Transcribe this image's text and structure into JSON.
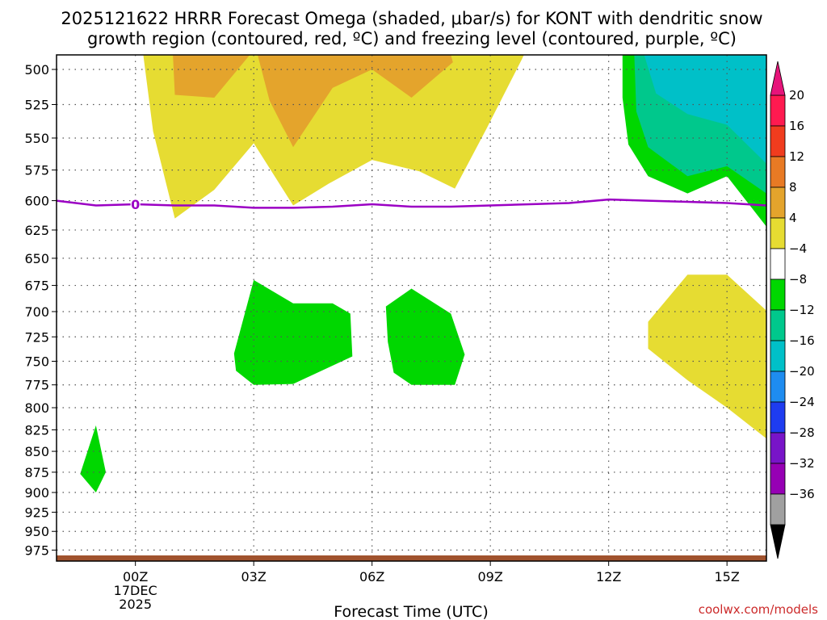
{
  "chart_data": {
    "type": "heatmap",
    "title_lines": [
      "2025121622 HRRR Forecast Omega (shaded, μbar/s) for KONT with dendritic snow",
      "growth region (contoured, red, ºC) and freezing level (contoured, purple, ºC)"
    ],
    "xlabel": "Forecast Time (UTC)",
    "xlim": [
      -2,
      16
    ],
    "ylim": [
      490,
      990
    ],
    "y_scale": "pressure",
    "grid": true,
    "x_ticks": [
      {
        "value": 0,
        "lines": [
          "00Z",
          "17DEC",
          "2025"
        ]
      },
      {
        "value": 3,
        "lines": [
          "03Z"
        ]
      },
      {
        "value": 6,
        "lines": [
          "06Z"
        ]
      },
      {
        "value": 9,
        "lines": [
          "09Z"
        ]
      },
      {
        "value": 12,
        "lines": [
          "12Z"
        ]
      },
      {
        "value": 15,
        "lines": [
          "15Z"
        ]
      }
    ],
    "y_ticks": [
      500,
      525,
      550,
      575,
      600,
      625,
      650,
      675,
      700,
      725,
      750,
      775,
      800,
      825,
      850,
      875,
      900,
      925,
      950,
      975
    ],
    "colorbar": {
      "placement": "right",
      "levels": [
        20,
        16,
        12,
        8,
        4,
        -4,
        -8,
        -12,
        -16,
        -20,
        -24,
        -28,
        -32,
        -36
      ],
      "colors": [
        "#ff1a50",
        "#f03c1e",
        "#e87a24",
        "#e4a42c",
        "#e6dc32",
        "#ffffff",
        "#00d700",
        "#00c88c",
        "#00c0c8",
        "#1e8cf0",
        "#1e3cf0",
        "#7814c8",
        "#9600b4",
        "#a0a0a0"
      ],
      "top_triangle_color": "#e6147a",
      "bottom_triangle_color": "#000000"
    },
    "freezing_level": {
      "color": "#9b00c4",
      "label": "0",
      "label_x": 0,
      "points": [
        [
          -2,
          600
        ],
        [
          -1,
          604
        ],
        [
          0,
          603
        ],
        [
          1,
          604
        ],
        [
          2,
          604
        ],
        [
          3,
          606
        ],
        [
          4,
          606
        ],
        [
          5,
          605
        ],
        [
          6,
          603
        ],
        [
          7,
          605
        ],
        [
          8,
          605
        ],
        [
          9,
          604
        ],
        [
          10,
          603
        ],
        [
          11,
          602
        ],
        [
          12,
          599
        ],
        [
          13,
          600
        ],
        [
          14,
          601
        ],
        [
          15,
          602
        ],
        [
          16,
          604
        ]
      ]
    },
    "surface_color": "#a0522d",
    "shaded_regions": [
      {
        "value": 4,
        "color": "#e6dc32",
        "points": [
          [
            0.2,
            490
          ],
          [
            9.85,
            490
          ],
          [
            9.8,
            493
          ],
          [
            8.9,
            543
          ],
          [
            8.1,
            590
          ],
          [
            7.2,
            576
          ],
          [
            6.0,
            567
          ],
          [
            4.9,
            586
          ],
          [
            4.0,
            604
          ],
          [
            3.0,
            554
          ],
          [
            2.0,
            591
          ],
          [
            1.0,
            615
          ],
          [
            0.45,
            545
          ]
        ]
      },
      {
        "value": 8,
        "color": "#e4a42c",
        "points": [
          [
            0.95,
            490
          ],
          [
            2.9,
            490
          ],
          [
            2.0,
            520
          ],
          [
            1.0,
            518
          ]
        ]
      },
      {
        "value": 8,
        "color": "#e4a42c",
        "points": [
          [
            3.1,
            490
          ],
          [
            8.0,
            490
          ],
          [
            8.05,
            495
          ],
          [
            7.0,
            520
          ],
          [
            6.0,
            500
          ],
          [
            5.0,
            513
          ],
          [
            4.0,
            557
          ],
          [
            3.4,
            522
          ]
        ]
      },
      {
        "value": -4,
        "color": "#00d700",
        "points": [
          [
            12.35,
            490
          ],
          [
            16,
            490
          ],
          [
            16,
            622
          ],
          [
            15.0,
            580
          ],
          [
            14.0,
            594
          ],
          [
            13.0,
            580
          ],
          [
            12.5,
            555
          ],
          [
            12.35,
            520
          ]
        ]
      },
      {
        "value": -8,
        "color": "#00c88c",
        "points": [
          [
            12.65,
            490
          ],
          [
            16,
            490
          ],
          [
            16,
            594
          ],
          [
            15.0,
            572
          ],
          [
            14.0,
            580
          ],
          [
            13.0,
            557
          ],
          [
            12.7,
            530
          ]
        ]
      },
      {
        "value": -12,
        "color": "#00c0c8",
        "points": [
          [
            12.9,
            490
          ],
          [
            16,
            490
          ],
          [
            16,
            570
          ],
          [
            15.0,
            540
          ],
          [
            14.0,
            532
          ],
          [
            13.2,
            517
          ]
        ]
      },
      {
        "value": -4,
        "color": "#00d700",
        "points": [
          [
            -1.4,
            877
          ],
          [
            -1.0,
            820
          ],
          [
            -0.75,
            875
          ],
          [
            -1.0,
            900
          ]
        ]
      },
      {
        "value": -4,
        "color": "#00d700",
        "points": [
          [
            2.5,
            742
          ],
          [
            3.0,
            670
          ],
          [
            4.0,
            692
          ],
          [
            5.0,
            692
          ],
          [
            5.45,
            702
          ],
          [
            5.5,
            745
          ],
          [
            4.0,
            774
          ],
          [
            3.0,
            775
          ],
          [
            2.55,
            760
          ]
        ]
      },
      {
        "value": -4,
        "color": "#00d700",
        "points": [
          [
            6.35,
            695
          ],
          [
            7.0,
            678
          ],
          [
            8.0,
            702
          ],
          [
            8.35,
            743
          ],
          [
            8.1,
            775
          ],
          [
            7.0,
            775
          ],
          [
            6.55,
            762
          ],
          [
            6.4,
            730
          ]
        ]
      },
      {
        "value": 4,
        "color": "#e6dc32",
        "points": [
          [
            13.0,
            710
          ],
          [
            14.0,
            665
          ],
          [
            15.0,
            665
          ],
          [
            16,
            699
          ],
          [
            16,
            835
          ],
          [
            15.0,
            800
          ],
          [
            14.0,
            770
          ],
          [
            13.0,
            737
          ]
        ]
      }
    ]
  },
  "footer": {
    "credit": "coolwx.com/models"
  }
}
